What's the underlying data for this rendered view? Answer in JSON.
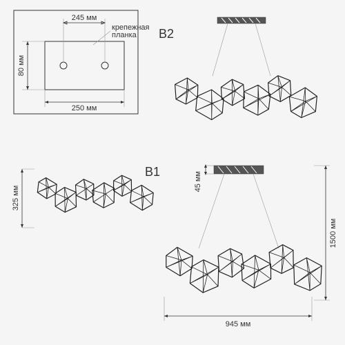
{
  "mounting_plate": {
    "width_label": "250 мм",
    "height_label": "80 мм",
    "hole_spacing_label": "245 мм",
    "annotation": "крепежная\nпланка",
    "box_outer_w": 180,
    "box_outer_h": 150,
    "plate_w": 115,
    "plate_h": 70,
    "hole_r": 4,
    "line_color": "#333333"
  },
  "variant_b2": {
    "label": "B2",
    "mount_w": 60,
    "mount_h": 10,
    "cable_len": 55,
    "cluster_count": 6
  },
  "side_view": {
    "height_label": "325 мм",
    "cluster_count": 6
  },
  "variant_b1": {
    "label": "B1",
    "mount_h_label": "45 мм",
    "total_h_label": "1500 мм",
    "width_label": "945 мм",
    "mount_w": 60,
    "mount_h": 12,
    "cable_len": 85,
    "cluster_count": 6
  },
  "colors": {
    "bg": "#f5f5f5",
    "stroke": "#333333",
    "poly": "#222222",
    "thin": "#999999",
    "mount_fill": "#555555"
  },
  "typography": {
    "label_size": 11,
    "variant_label_size": 18,
    "family": "Arial"
  }
}
